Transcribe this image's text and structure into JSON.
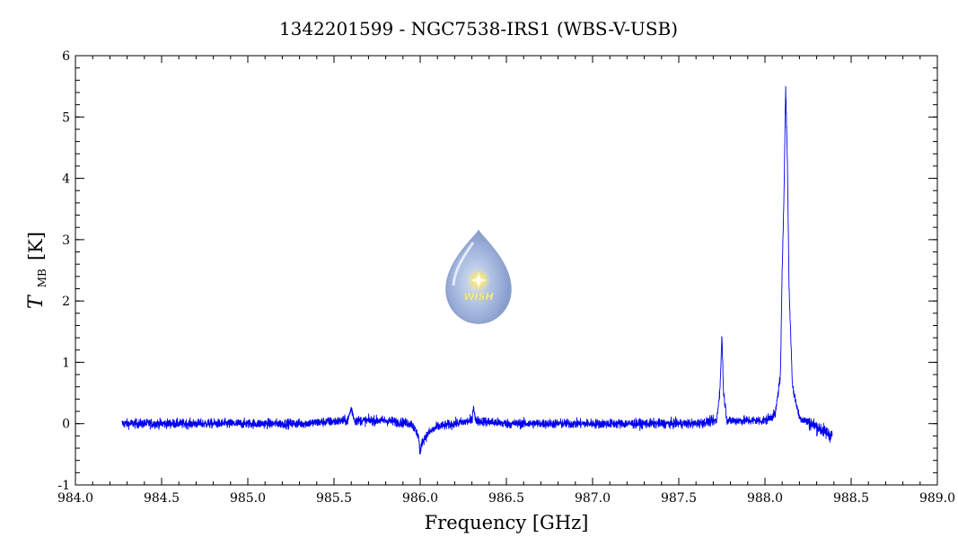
{
  "chart_data": {
    "type": "line",
    "title": "1342201599 - NGC7538-IRS1 (WBS-V-USB)",
    "xlabel": "Frequency [GHz]",
    "ylabel": {
      "symbol": "T",
      "subscript": "MB",
      "unit": "[K]"
    },
    "xlim": [
      984.0,
      989.0
    ],
    "ylim": [
      -1,
      6
    ],
    "x_ticks": [
      "984.0",
      "984.5",
      "985.0",
      "985.5",
      "986.0",
      "986.5",
      "987.0",
      "987.5",
      "988.0",
      "988.5",
      "989.0"
    ],
    "y_ticks": [
      "-1",
      "0",
      "1",
      "2",
      "3",
      "4",
      "5",
      "6"
    ],
    "grid": false,
    "series": [
      {
        "color": "#0000ee",
        "x": [
          984.27,
          984.6,
          985.0,
          985.3,
          985.58,
          985.6,
          985.62,
          985.8,
          985.95,
          985.99,
          986.0,
          986.01,
          986.05,
          986.1,
          986.2,
          986.3,
          986.31,
          986.32,
          986.5,
          987.0,
          987.3,
          987.6,
          987.72,
          987.74,
          987.75,
          987.76,
          987.78,
          987.9,
          988.0,
          988.06,
          988.09,
          988.1,
          988.11,
          988.12,
          988.13,
          988.14,
          988.16,
          988.2,
          988.3,
          988.39
        ],
        "y": [
          0.0,
          0.0,
          0.0,
          0.0,
          0.05,
          0.25,
          0.05,
          0.05,
          0.0,
          -0.2,
          -0.5,
          -0.3,
          -0.15,
          -0.05,
          0.0,
          0.05,
          0.3,
          0.05,
          0.0,
          0.0,
          0.0,
          0.0,
          0.05,
          0.6,
          1.45,
          0.5,
          0.05,
          0.05,
          0.05,
          0.15,
          0.8,
          2.5,
          3.7,
          5.5,
          4.3,
          2.2,
          0.6,
          0.1,
          -0.05,
          -0.2
        ]
      }
    ],
    "logo": {
      "text": "WISH"
    }
  }
}
